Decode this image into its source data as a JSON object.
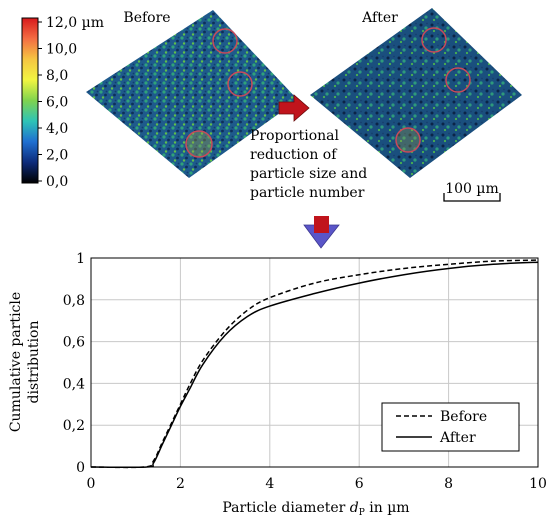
{
  "scan_panel": {
    "colorbar": {
      "ticks": [
        "12,0 µm",
        "10,0",
        "8,0",
        "6,0",
        "4,0",
        "2,0",
        "0,0"
      ],
      "colors": [
        "#d7191c",
        "#f46d43",
        "#f5c542",
        "#f2f541",
        "#7fd34e",
        "#2ec4b6",
        "#1f6fd1",
        "#0d2b7a",
        "#000000"
      ]
    },
    "before_label": "Before",
    "after_label": "After",
    "caption_lines": [
      "Proportional",
      "reduction of",
      "particle size and",
      "particle number"
    ],
    "scale_bar_label": "100 µm",
    "arrow_color": "#c0141c",
    "marker_color": "#c84a5a"
  },
  "chart_data": {
    "type": "line",
    "xlabel": {
      "prefix": "Particle diameter ",
      "var": "d",
      "sub": "P",
      "suffix": " in µm"
    },
    "ylabel": [
      "Cumulative particle",
      "distribution"
    ],
    "xlim": [
      0,
      10
    ],
    "ylim": [
      0,
      1
    ],
    "x_ticks": [
      0,
      2,
      4,
      6,
      8,
      10
    ],
    "y_ticks": [
      "0",
      "0,2",
      "0,4",
      "0,6",
      "0,8",
      "1"
    ],
    "grid": true,
    "legend_position": "bottom-right",
    "series": [
      {
        "name": "Before",
        "style": "dashed",
        "x": [
          0,
          1.2,
          1.4,
          1.6,
          1.8,
          2.0,
          2.2,
          2.5,
          3.0,
          3.5,
          4.0,
          5.0,
          6.0,
          7.0,
          8.0,
          9.0,
          10.0
        ],
        "y": [
          0,
          0,
          0.03,
          0.12,
          0.21,
          0.3,
          0.39,
          0.51,
          0.65,
          0.75,
          0.81,
          0.88,
          0.92,
          0.95,
          0.97,
          0.985,
          0.99
        ]
      },
      {
        "name": "After",
        "style": "solid",
        "x": [
          0,
          1.25,
          1.4,
          1.6,
          1.8,
          2.0,
          2.2,
          2.5,
          3.0,
          3.5,
          4.0,
          5.0,
          6.0,
          7.0,
          8.0,
          9.0,
          10.0
        ],
        "y": [
          0,
          0,
          0.02,
          0.11,
          0.2,
          0.29,
          0.37,
          0.49,
          0.63,
          0.72,
          0.77,
          0.83,
          0.88,
          0.92,
          0.95,
          0.97,
          0.98
        ]
      }
    ]
  }
}
